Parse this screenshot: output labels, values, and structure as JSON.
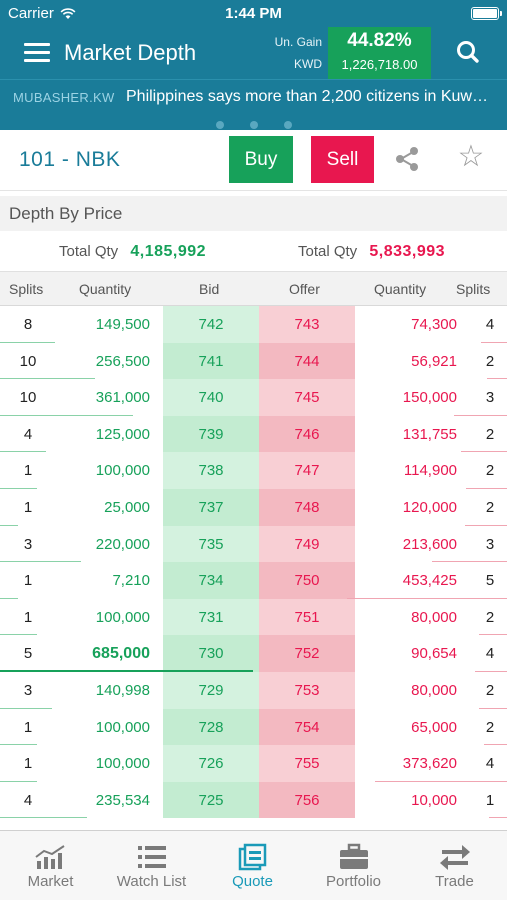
{
  "status_bar": {
    "carrier": "Carrier",
    "time": "1:44 PM"
  },
  "header": {
    "title": "Market Depth",
    "gain_label": "Un. Gain",
    "currency_label": "KWD",
    "gain_percent": "44.82%",
    "gain_amount": "1,226,718.00"
  },
  "ticker": {
    "source": "MUBASHER.KW",
    "headline": "Philippines says more than 2,200 citizens in Kuwait..."
  },
  "symbol_bar": {
    "symbol": "101 - NBK",
    "buy_label": "Buy",
    "sell_label": "Sell",
    "share_icon": "share-icon",
    "star_icon": "star-icon"
  },
  "depth": {
    "section_title": "Depth By Price",
    "bid_total_label": "Total Qty",
    "bid_total": "4,185,992",
    "offer_total_label": "Total Qty",
    "offer_total": "5,833,993",
    "columns": [
      "Splits",
      "Quantity",
      "Bid",
      "Offer",
      "Quantity",
      "Splits"
    ],
    "rows": [
      {
        "bid_splits": "8",
        "bid_qty": "149,500",
        "bid": "742",
        "offer": "743",
        "offer_qty": "74,300",
        "offer_splits": "4"
      },
      {
        "bid_splits": "10",
        "bid_qty": "256,500",
        "bid": "741",
        "offer": "744",
        "offer_qty": "56,921",
        "offer_splits": "2"
      },
      {
        "bid_splits": "10",
        "bid_qty": "361,000",
        "bid": "740",
        "offer": "745",
        "offer_qty": "150,000",
        "offer_splits": "3"
      },
      {
        "bid_splits": "4",
        "bid_qty": "125,000",
        "bid": "739",
        "offer": "746",
        "offer_qty": "131,755",
        "offer_splits": "2"
      },
      {
        "bid_splits": "1",
        "bid_qty": "100,000",
        "bid": "738",
        "offer": "747",
        "offer_qty": "114,900",
        "offer_splits": "2"
      },
      {
        "bid_splits": "1",
        "bid_qty": "25,000",
        "bid": "737",
        "offer": "748",
        "offer_qty": "120,000",
        "offer_splits": "2"
      },
      {
        "bid_splits": "3",
        "bid_qty": "220,000",
        "bid": "735",
        "offer": "749",
        "offer_qty": "213,600",
        "offer_splits": "3"
      },
      {
        "bid_splits": "1",
        "bid_qty": "7,210",
        "bid": "734",
        "offer": "750",
        "offer_qty": "453,425",
        "offer_splits": "5"
      },
      {
        "bid_splits": "1",
        "bid_qty": "100,000",
        "bid": "731",
        "offer": "751",
        "offer_qty": "80,000",
        "offer_splits": "2"
      },
      {
        "bid_splits": "5",
        "bid_qty": "685,000",
        "bid": "730",
        "offer": "752",
        "offer_qty": "90,654",
        "offer_splits": "4"
      },
      {
        "bid_splits": "3",
        "bid_qty": "140,998",
        "bid": "729",
        "offer": "753",
        "offer_qty": "80,000",
        "offer_splits": "2"
      },
      {
        "bid_splits": "1",
        "bid_qty": "100,000",
        "bid": "728",
        "offer": "754",
        "offer_qty": "65,000",
        "offer_splits": "2"
      },
      {
        "bid_splits": "1",
        "bid_qty": "100,000",
        "bid": "726",
        "offer": "755",
        "offer_qty": "373,620",
        "offer_splits": "4"
      },
      {
        "bid_splits": "4",
        "bid_qty": "235,534",
        "bid": "725",
        "offer": "756",
        "offer_qty": "10,000",
        "offer_splits": "1"
      }
    ]
  },
  "tabs": [
    {
      "label": "Market",
      "icon": "chart-icon"
    },
    {
      "label": "Watch List",
      "icon": "list-icon"
    },
    {
      "label": "Quote",
      "icon": "quote-icon",
      "active": true
    },
    {
      "label": "Portfolio",
      "icon": "briefcase-icon"
    },
    {
      "label": "Trade",
      "icon": "transfer-icon"
    }
  ],
  "colors": {
    "brand": "#1a7c99",
    "bid": "#17a15a",
    "offer": "#e8174f",
    "active_tab": "#1a9ab8"
  }
}
